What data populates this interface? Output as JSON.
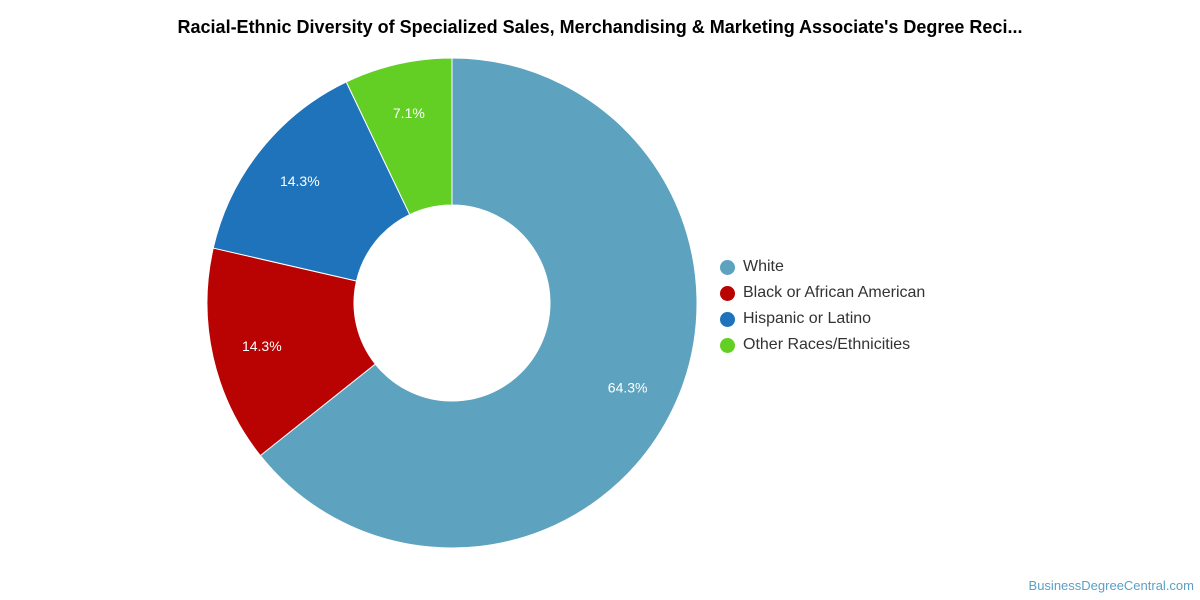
{
  "chart_data": {
    "type": "pie",
    "title": "Racial-Ethnic Diversity of Specialized Sales, Merchandising & Marketing Associate's Degree Reci...",
    "categories": [
      "White",
      "Black or African American",
      "Hispanic or Latino",
      "Other Races/Ethnicities"
    ],
    "values": [
      64.3,
      14.3,
      14.3,
      7.1
    ],
    "value_labels": [
      "64.3%",
      "14.3%",
      "14.3%",
      "7.1%"
    ],
    "colors": [
      "#5da2bf",
      "#b90202",
      "#1e73bb",
      "#63cf24"
    ],
    "donut": true,
    "legend_position": "right"
  },
  "source": "BusinessDegreeCentral.com"
}
